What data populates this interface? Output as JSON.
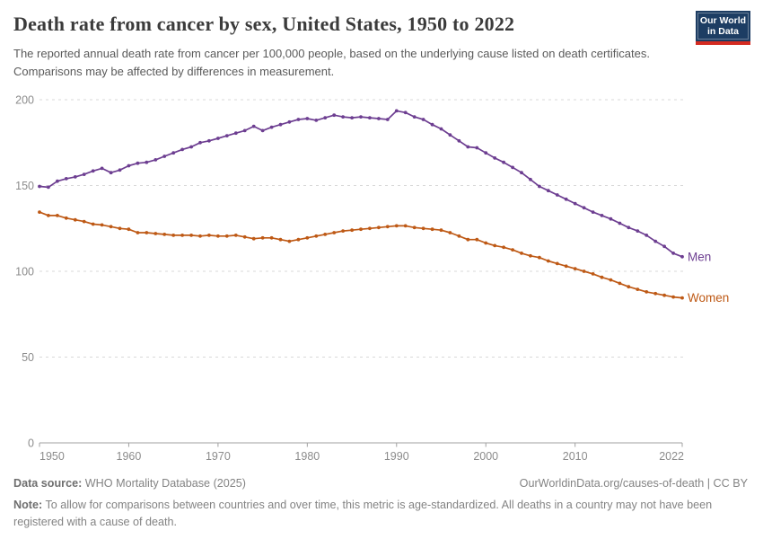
{
  "header": {
    "title": "Death rate from cancer by sex, United States, 1950 to 2022",
    "subtitle": "The reported annual death rate from cancer per 100,000 people, based on the underlying cause listed on death certificates. Comparisons may be affected by differences in measurement."
  },
  "logo": {
    "line1": "Our World",
    "line2": "in Data"
  },
  "chart_data": {
    "type": "line",
    "title": "Death rate from cancer by sex, United States, 1950 to 2022",
    "xlabel": "",
    "ylabel": "",
    "xlim": [
      1950,
      2022
    ],
    "ylim": [
      0,
      200
    ],
    "xticks": [
      1950,
      1960,
      1970,
      1980,
      1990,
      2000,
      2010,
      2022
    ],
    "yticks": [
      0,
      50,
      100,
      150,
      200
    ],
    "grid": true,
    "legend_position": "end-of-line",
    "x": [
      1950,
      1951,
      1952,
      1953,
      1954,
      1955,
      1956,
      1957,
      1958,
      1959,
      1960,
      1961,
      1962,
      1963,
      1964,
      1965,
      1966,
      1967,
      1968,
      1969,
      1970,
      1971,
      1972,
      1973,
      1974,
      1975,
      1976,
      1977,
      1978,
      1979,
      1980,
      1981,
      1982,
      1983,
      1984,
      1985,
      1986,
      1987,
      1988,
      1989,
      1990,
      1991,
      1992,
      1993,
      1994,
      1995,
      1996,
      1997,
      1998,
      1999,
      2000,
      2001,
      2002,
      2003,
      2004,
      2005,
      2006,
      2007,
      2008,
      2009,
      2010,
      2011,
      2012,
      2013,
      2014,
      2015,
      2016,
      2017,
      2018,
      2019,
      2020,
      2021,
      2022
    ],
    "series": [
      {
        "name": "Men",
        "color": "#6d3e91",
        "values": [
          149.5,
          149,
          152.5,
          154,
          155,
          156.5,
          158.5,
          160,
          157.5,
          159,
          161.5,
          163,
          163.5,
          165,
          167,
          169,
          171,
          172.5,
          175,
          176,
          177.5,
          179,
          180.5,
          182,
          184.5,
          182,
          184,
          185.5,
          187,
          188.5,
          189,
          188,
          189.5,
          191,
          190,
          189.5,
          190,
          189.5,
          189,
          188.5,
          193.5,
          192.5,
          190,
          188.5,
          185.5,
          183,
          179.5,
          176,
          172.5,
          172,
          169,
          166,
          163.5,
          160.5,
          157.5,
          153.5,
          149.5,
          147,
          144.5,
          142,
          139.5,
          137,
          134.5,
          132.5,
          130.5,
          128,
          125.5,
          123.5,
          121,
          117.5,
          114.5,
          110.5,
          108.5
        ]
      },
      {
        "name": "Women",
        "color": "#be5915",
        "values": [
          134.5,
          132.5,
          132.5,
          131,
          130,
          129,
          127.5,
          127,
          126,
          125,
          124.5,
          122.5,
          122.5,
          122,
          121.5,
          121,
          121,
          121,
          120.5,
          121,
          120.5,
          120.5,
          121,
          120,
          119,
          119.5,
          119.5,
          118.5,
          117.5,
          118.5,
          119.5,
          120.5,
          121.5,
          122.5,
          123.5,
          124,
          124.5,
          125,
          125.5,
          126,
          126.5,
          126.5,
          125.5,
          125,
          124.5,
          124,
          122.5,
          120.5,
          118.5,
          118.5,
          116.5,
          115,
          114,
          112.5,
          110.5,
          109,
          108,
          106,
          104.5,
          103,
          101.5,
          100,
          98.5,
          96.5,
          95,
          93,
          91,
          89.5,
          88,
          87,
          86,
          85,
          84.5
        ]
      }
    ]
  },
  "footer": {
    "source_label": "Data source:",
    "source_text": " WHO Mortality Database (2025)",
    "link_text": "OurWorldinData.org/causes-of-death | CC BY",
    "note_label": "Note:",
    "note_text": " To allow for comparisons between countries and over time, this metric is age-standardized. All deaths in a country may not have been registered with a cause of death."
  },
  "colors": {
    "men": "#6d3e91",
    "women": "#be5915",
    "logo_navy": "#1d3d63",
    "logo_red": "#d42b21",
    "grid": "#d9d9d9",
    "axis": "#a1a1a1",
    "tick_text": "#8c8c8c",
    "title_text": "#3b3b3b"
  }
}
